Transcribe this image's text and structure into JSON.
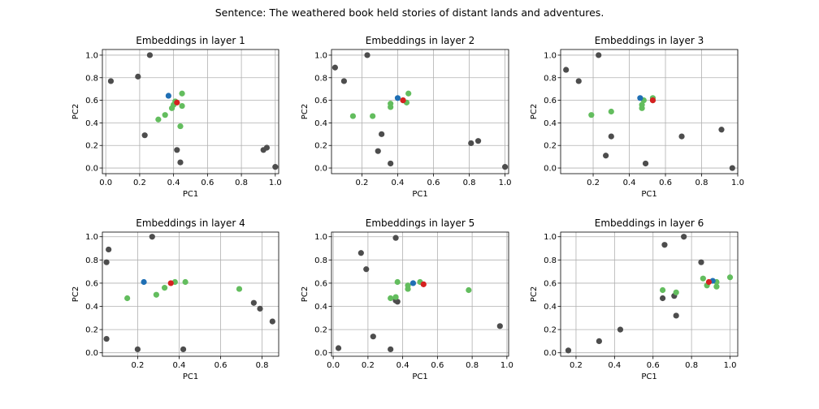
{
  "figure": {
    "title": "Sentence: The weathered book held stories of distant lands and adventures."
  },
  "colors": {
    "context": "#4d4d4d",
    "sentence": "#63bd5e",
    "blue": "#1f6fb4",
    "red": "#d62020",
    "grid": "#b0b0b0"
  },
  "chart_data": [
    {
      "type": "scatter",
      "title": "Embeddings in layer 1",
      "xlabel": "PC1",
      "ylabel": "PC2",
      "xlim": [
        -0.02,
        1.02
      ],
      "ylim": [
        -0.05,
        1.05
      ],
      "xticks": [
        0.0,
        0.2,
        0.4,
        0.6,
        0.8,
        1.0
      ],
      "xticklabels": [
        "0.0",
        "0.2",
        "0.4",
        "0.6",
        "0.8",
        "1.0"
      ],
      "yticks": [
        0.0,
        0.2,
        0.4,
        0.6,
        0.8,
        1.0
      ],
      "yticklabels": [
        "0.0",
        "0.2",
        "0.4",
        "0.6",
        "0.8",
        "1.0"
      ],
      "grid": true,
      "series": [
        {
          "color": "context",
          "points": [
            [
              0.03,
              0.77
            ],
            [
              0.19,
              0.81
            ],
            [
              0.26,
              1.0
            ],
            [
              0.23,
              0.29
            ],
            [
              0.42,
              0.16
            ],
            [
              0.44,
              0.05
            ],
            [
              0.93,
              0.16
            ],
            [
              0.95,
              0.18
            ],
            [
              1.0,
              0.01
            ]
          ]
        },
        {
          "color": "sentence",
          "points": [
            [
              0.31,
              0.43
            ],
            [
              0.35,
              0.47
            ],
            [
              0.39,
              0.53
            ],
            [
              0.4,
              0.56
            ],
            [
              0.41,
              0.59
            ],
            [
              0.45,
              0.66
            ],
            [
              0.45,
              0.55
            ],
            [
              0.44,
              0.37
            ]
          ]
        },
        {
          "color": "blue",
          "points": [
            [
              0.37,
              0.64
            ]
          ]
        },
        {
          "color": "red",
          "points": [
            [
              0.42,
              0.58
            ]
          ]
        }
      ]
    },
    {
      "type": "scatter",
      "title": "Embeddings in layer 2",
      "xlabel": "PC1",
      "ylabel": "PC2",
      "xlim": [
        0.03,
        1.02
      ],
      "ylim": [
        -0.05,
        1.05
      ],
      "xticks": [
        0.2,
        0.4,
        0.6,
        0.8,
        1.0
      ],
      "xticklabels": [
        "0.2",
        "0.4",
        "0.6",
        "0.8",
        "1.0"
      ],
      "yticks": [
        0.0,
        0.2,
        0.4,
        0.6,
        0.8,
        1.0
      ],
      "yticklabels": [
        "0.0",
        "0.2",
        "0.4",
        "0.6",
        "0.8",
        "1.0"
      ],
      "grid": true,
      "series": [
        {
          "color": "context",
          "points": [
            [
              0.05,
              0.89
            ],
            [
              0.1,
              0.77
            ],
            [
              0.23,
              1.0
            ],
            [
              0.31,
              0.3
            ],
            [
              0.29,
              0.15
            ],
            [
              0.36,
              0.04
            ],
            [
              0.81,
              0.22
            ],
            [
              0.85,
              0.24
            ],
            [
              1.0,
              0.01
            ]
          ]
        },
        {
          "color": "sentence",
          "points": [
            [
              0.15,
              0.46
            ],
            [
              0.26,
              0.46
            ],
            [
              0.36,
              0.54
            ],
            [
              0.36,
              0.57
            ],
            [
              0.45,
              0.58
            ],
            [
              0.46,
              0.66
            ],
            [
              0.43,
              0.6
            ]
          ]
        },
        {
          "color": "blue",
          "points": [
            [
              0.4,
              0.62
            ]
          ]
        },
        {
          "color": "red",
          "points": [
            [
              0.43,
              0.6
            ]
          ]
        }
      ]
    },
    {
      "type": "scatter",
      "title": "Embeddings in layer 3",
      "xlabel": "PC1",
      "ylabel": "PC2",
      "xlim": [
        0.02,
        1.0
      ],
      "ylim": [
        -0.05,
        1.05
      ],
      "xticks": [
        0.2,
        0.4,
        0.6,
        0.8,
        1.0
      ],
      "xticklabels": [
        "0.2",
        "0.4",
        "0.6",
        "0.8",
        "1.0"
      ],
      "yticks": [
        0.0,
        0.2,
        0.4,
        0.6,
        0.8,
        1.0
      ],
      "yticklabels": [
        "0.0",
        "0.2",
        "0.4",
        "0.6",
        "0.8",
        "1.0"
      ],
      "grid": true,
      "series": [
        {
          "color": "context",
          "points": [
            [
              0.05,
              0.87
            ],
            [
              0.12,
              0.77
            ],
            [
              0.23,
              1.0
            ],
            [
              0.3,
              0.28
            ],
            [
              0.27,
              0.11
            ],
            [
              0.49,
              0.04
            ],
            [
              0.69,
              0.28
            ],
            [
              0.91,
              0.34
            ],
            [
              0.97,
              0.0
            ]
          ]
        },
        {
          "color": "sentence",
          "points": [
            [
              0.19,
              0.47
            ],
            [
              0.3,
              0.5
            ],
            [
              0.47,
              0.53
            ],
            [
              0.47,
              0.56
            ],
            [
              0.53,
              0.62
            ],
            [
              0.53,
              0.6
            ],
            [
              0.48,
              0.6
            ]
          ]
        },
        {
          "color": "blue",
          "points": [
            [
              0.46,
              0.62
            ]
          ]
        },
        {
          "color": "red",
          "points": [
            [
              0.53,
              0.6
            ]
          ]
        }
      ]
    },
    {
      "type": "scatter",
      "title": "Embeddings in layer 4",
      "xlabel": "PC1",
      "ylabel": "PC2",
      "xlim": [
        0.03,
        0.88
      ],
      "ylim": [
        -0.03,
        1.04
      ],
      "xticks": [
        0.2,
        0.4,
        0.6,
        0.8
      ],
      "xticklabels": [
        "0.2",
        "0.4",
        "0.6",
        "0.8"
      ],
      "yticks": [
        0.0,
        0.2,
        0.4,
        0.6,
        0.8,
        1.0
      ],
      "yticklabels": [
        "0.0",
        "0.2",
        "0.4",
        "0.6",
        "0.8",
        "1.0"
      ],
      "grid": true,
      "series": [
        {
          "color": "context",
          "points": [
            [
              0.05,
              0.78
            ],
            [
              0.06,
              0.89
            ],
            [
              0.27,
              1.0
            ],
            [
              0.05,
              0.12
            ],
            [
              0.2,
              0.03
            ],
            [
              0.42,
              0.03
            ],
            [
              0.76,
              0.43
            ],
            [
              0.79,
              0.38
            ],
            [
              0.85,
              0.27
            ]
          ]
        },
        {
          "color": "sentence",
          "points": [
            [
              0.15,
              0.47
            ],
            [
              0.29,
              0.5
            ],
            [
              0.33,
              0.56
            ],
            [
              0.38,
              0.61
            ],
            [
              0.43,
              0.61
            ],
            [
              0.69,
              0.55
            ]
          ]
        },
        {
          "color": "blue",
          "points": [
            [
              0.23,
              0.61
            ]
          ]
        },
        {
          "color": "red",
          "points": [
            [
              0.36,
              0.6
            ]
          ]
        }
      ]
    },
    {
      "type": "scatter",
      "title": "Embeddings in layer 5",
      "xlabel": "PC1",
      "ylabel": "PC2",
      "xlim": [
        -0.01,
        1.01
      ],
      "ylim": [
        -0.03,
        1.04
      ],
      "xticks": [
        0.0,
        0.2,
        0.4,
        0.6,
        0.8,
        1.0
      ],
      "xticklabels": [
        "0.0",
        "0.2",
        "0.4",
        "0.6",
        "0.8",
        "1.0"
      ],
      "yticks": [
        0.0,
        0.2,
        0.4,
        0.6,
        0.8,
        1.0
      ],
      "yticklabels": [
        "0.0",
        "0.2",
        "0.4",
        "0.6",
        "0.8",
        "1.0"
      ],
      "grid": true,
      "series": [
        {
          "color": "context",
          "points": [
            [
              0.16,
              0.86
            ],
            [
              0.19,
              0.72
            ],
            [
              0.36,
              0.99
            ],
            [
              0.03,
              0.04
            ],
            [
              0.23,
              0.14
            ],
            [
              0.33,
              0.03
            ],
            [
              0.36,
              0.45
            ],
            [
              0.37,
              0.44
            ],
            [
              0.96,
              0.23
            ]
          ]
        },
        {
          "color": "sentence",
          "points": [
            [
              0.33,
              0.47
            ],
            [
              0.36,
              0.48
            ],
            [
              0.37,
              0.61
            ],
            [
              0.43,
              0.55
            ],
            [
              0.43,
              0.58
            ],
            [
              0.5,
              0.61
            ],
            [
              0.78,
              0.54
            ]
          ]
        },
        {
          "color": "blue",
          "points": [
            [
              0.46,
              0.6
            ]
          ]
        },
        {
          "color": "red",
          "points": [
            [
              0.52,
              0.59
            ]
          ]
        }
      ]
    },
    {
      "type": "scatter",
      "title": "Embeddings in layer 6",
      "xlabel": "PC1",
      "ylabel": "PC2",
      "xlim": [
        0.12,
        1.04
      ],
      "ylim": [
        -0.03,
        1.04
      ],
      "xticks": [
        0.2,
        0.4,
        0.6,
        0.8,
        1.0
      ],
      "xticklabels": [
        "0.2",
        "0.4",
        "0.6",
        "0.8",
        "1.0"
      ],
      "yticks": [
        0.0,
        0.2,
        0.4,
        0.6,
        0.8,
        1.0
      ],
      "yticklabels": [
        "0.0",
        "0.2",
        "0.4",
        "0.6",
        "0.8",
        "1.0"
      ],
      "grid": true,
      "series": [
        {
          "color": "context",
          "points": [
            [
              0.66,
              0.93
            ],
            [
              0.76,
              1.0
            ],
            [
              0.16,
              0.02
            ],
            [
              0.32,
              0.1
            ],
            [
              0.43,
              0.2
            ],
            [
              0.65,
              0.47
            ],
            [
              0.71,
              0.49
            ],
            [
              0.72,
              0.32
            ],
            [
              0.85,
              0.78
            ]
          ]
        },
        {
          "color": "sentence",
          "points": [
            [
              0.65,
              0.54
            ],
            [
              0.72,
              0.52
            ],
            [
              0.86,
              0.64
            ],
            [
              0.88,
              0.58
            ],
            [
              0.93,
              0.57
            ],
            [
              0.93,
              0.61
            ],
            [
              1.0,
              0.65
            ]
          ]
        },
        {
          "color": "blue",
          "points": [
            [
              0.91,
              0.62
            ]
          ]
        },
        {
          "color": "red",
          "points": [
            [
              0.89,
              0.61
            ]
          ]
        }
      ]
    }
  ]
}
